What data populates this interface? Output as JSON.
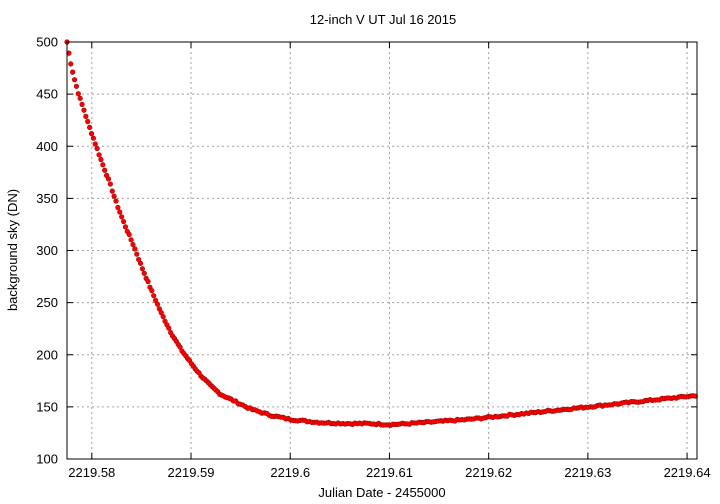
{
  "chart_data": {
    "type": "scatter",
    "title": "12-inch V UT Jul 16 2015",
    "xlabel": "Julian Date - 2455000",
    "ylabel": "background sky (DN)",
    "xlim": [
      2219.5775,
      2219.641
    ],
    "ylim": [
      100,
      500
    ],
    "xticks": [
      2219.58,
      2219.59,
      2219.6,
      2219.61,
      2219.62,
      2219.63,
      2219.64
    ],
    "xtick_labels": [
      "2219.58",
      "2219.59",
      "2219.6",
      "2219.61",
      "2219.62",
      "2219.63",
      "2219.64"
    ],
    "yticks": [
      100,
      150,
      200,
      250,
      300,
      350,
      400,
      450,
      500
    ],
    "ytick_labels": [
      "100",
      "150",
      "200",
      "250",
      "300",
      "350",
      "400",
      "450",
      "500"
    ],
    "grid": true,
    "marker_color": "#ff0000",
    "marker_edge_color": "#a00000",
    "anchors": [
      [
        2219.5775,
        500
      ],
      [
        2219.5778,
        483
      ],
      [
        2219.5782,
        466
      ],
      [
        2219.5787,
        449
      ],
      [
        2219.5792,
        435
      ],
      [
        2219.5797,
        420
      ],
      [
        2219.5803,
        404
      ],
      [
        2219.581,
        385
      ],
      [
        2219.5818,
        365
      ],
      [
        2219.5825,
        345
      ],
      [
        2219.5833,
        325
      ],
      [
        2219.5842,
        305
      ],
      [
        2219.585,
        285
      ],
      [
        2219.586,
        262
      ],
      [
        2219.587,
        240
      ],
      [
        2219.588,
        221
      ],
      [
        2219.589,
        205
      ],
      [
        2219.59,
        192
      ],
      [
        2219.591,
        180
      ],
      [
        2219.592,
        170
      ],
      [
        2219.593,
        162
      ],
      [
        2219.5945,
        155
      ],
      [
        2219.596,
        148
      ],
      [
        2219.598,
        142
      ],
      [
        2219.6,
        138
      ],
      [
        2219.603,
        135
      ],
      [
        2219.606,
        134
      ],
      [
        2219.608,
        134
      ],
      [
        2219.61,
        133
      ],
      [
        2219.612,
        134
      ],
      [
        2219.615,
        136
      ],
      [
        2219.618,
        138
      ],
      [
        2219.62,
        140
      ],
      [
        2219.623,
        143
      ],
      [
        2219.626,
        146
      ],
      [
        2219.63,
        150
      ],
      [
        2219.634,
        154
      ],
      [
        2219.638,
        158
      ],
      [
        2219.641,
        161
      ]
    ]
  }
}
